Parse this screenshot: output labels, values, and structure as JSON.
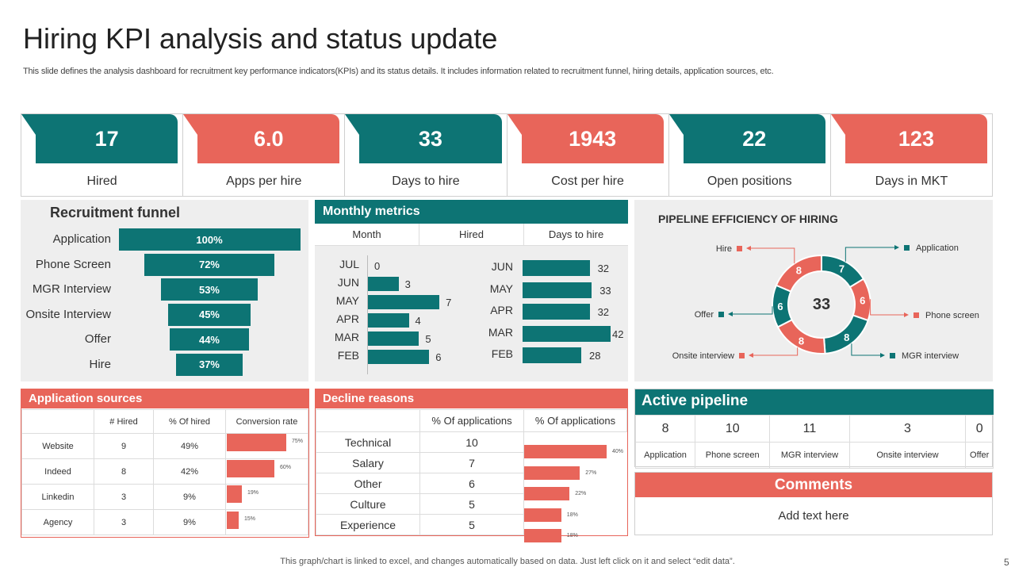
{
  "title": "Hiring KPI analysis and status update",
  "subtitle": "This slide defines the analysis dashboard for recruitment key performance indicators(KPIs) and its status details. It includes information related to recruitment funnel, hiring details, application sources, etc.",
  "colors": {
    "teal": "#0d7474",
    "red": "#e8655a",
    "panel": "#eeeeee"
  },
  "kpis": [
    {
      "value": "17",
      "label": "Hired",
      "color": "teal"
    },
    {
      "value": "6.0",
      "label": "Apps per hire",
      "color": "red"
    },
    {
      "value": "33",
      "label": "Days to hire",
      "color": "teal"
    },
    {
      "value": "1943",
      "label": "Cost per hire",
      "color": "red"
    },
    {
      "value": "22",
      "label": "Open positions",
      "color": "teal"
    },
    {
      "value": "123",
      "label": "Days in MKT",
      "color": "red"
    }
  ],
  "chart_data": [
    {
      "type": "bar",
      "orientation": "horizontal-funnel",
      "title": "Recruitment funnel",
      "categories": [
        "Application",
        "Phone Screen",
        "MGR Interview",
        "Onsite Interview",
        "Offer",
        "Hire"
      ],
      "values": [
        100,
        72,
        53,
        45,
        44,
        37
      ],
      "value_labels": [
        "100%",
        "72%",
        "53%",
        "45%",
        "44%",
        "37%"
      ],
      "unit": "%"
    },
    {
      "type": "bar",
      "orientation": "horizontal",
      "title": "Monthly metrics",
      "columns": [
        "Month",
        "Hired",
        "Days to hire"
      ],
      "series": [
        {
          "name": "Hired",
          "categories": [
            "JUL",
            "JUN",
            "MAY",
            "APR",
            "MAR",
            "FEB"
          ],
          "values": [
            0,
            3,
            7,
            4,
            5,
            6
          ],
          "xlim": [
            0,
            8
          ]
        },
        {
          "name": "Days to hire",
          "categories": [
            "JUN",
            "MAY",
            "APR",
            "MAR",
            "FEB"
          ],
          "values": [
            32,
            33,
            32,
            42,
            28
          ],
          "xlim": [
            0,
            42
          ]
        }
      ]
    },
    {
      "type": "pie",
      "variant": "donut",
      "title": "PIPELINE EFFICIENCY OF HIRING",
      "center_label": "33",
      "slices": [
        {
          "name": "Application",
          "value": 7,
          "color": "teal"
        },
        {
          "name": "Phone screen",
          "value": 6,
          "color": "red"
        },
        {
          "name": "MGR interview",
          "value": 8,
          "color": "teal"
        },
        {
          "name": "Onsite interview",
          "value": 8,
          "color": "red"
        },
        {
          "name": "Offer",
          "value": 6,
          "color": "teal"
        },
        {
          "name": "Hire",
          "value": 8,
          "color": "red"
        }
      ]
    },
    {
      "type": "table",
      "title": "Application sources",
      "columns": [
        "",
        "# Hired",
        "% Of hired",
        "Conversion rate"
      ],
      "rows": [
        {
          "source": "Website",
          "hired": "9",
          "pct": "49%",
          "rate": 75,
          "rate_label": "75%"
        },
        {
          "source": "Indeed",
          "hired": "8",
          "pct": "42%",
          "rate": 60,
          "rate_label": "60%"
        },
        {
          "source": "Linkedin",
          "hired": "3",
          "pct": "9%",
          "rate": 19,
          "rate_label": "19%"
        },
        {
          "source": "Agency",
          "hired": "3",
          "pct": "9%",
          "rate": 15,
          "rate_label": "15%"
        }
      ]
    },
    {
      "type": "table",
      "title": "Decline reasons",
      "columns": [
        "",
        "% Of applications",
        "% Of applications"
      ],
      "rows": [
        {
          "reason": "Technical",
          "count": "10",
          "pct": 40,
          "pct_label": "40%"
        },
        {
          "reason": "Salary",
          "count": "7",
          "pct": 27,
          "pct_label": "27%"
        },
        {
          "reason": "Other",
          "count": "6",
          "pct": 22,
          "pct_label": "22%"
        },
        {
          "reason": "Culture",
          "count": "5",
          "pct": 18,
          "pct_label": "18%"
        },
        {
          "reason": "Experience",
          "count": "5",
          "pct": 18,
          "pct_label": "18%"
        }
      ]
    }
  ],
  "active_pipeline": {
    "title": "Active pipeline",
    "values": [
      "8",
      "10",
      "11",
      "3",
      "0"
    ],
    "labels": [
      "Application",
      "Phone screen",
      "MGR interview",
      "Onsite interview",
      "Offer"
    ]
  },
  "comments": {
    "title": "Comments",
    "text": "Add text here"
  },
  "footer": "This graph/chart is linked to excel,  and changes automatically based on data. Just left click on it and select “edit data”.",
  "page_number": "5"
}
